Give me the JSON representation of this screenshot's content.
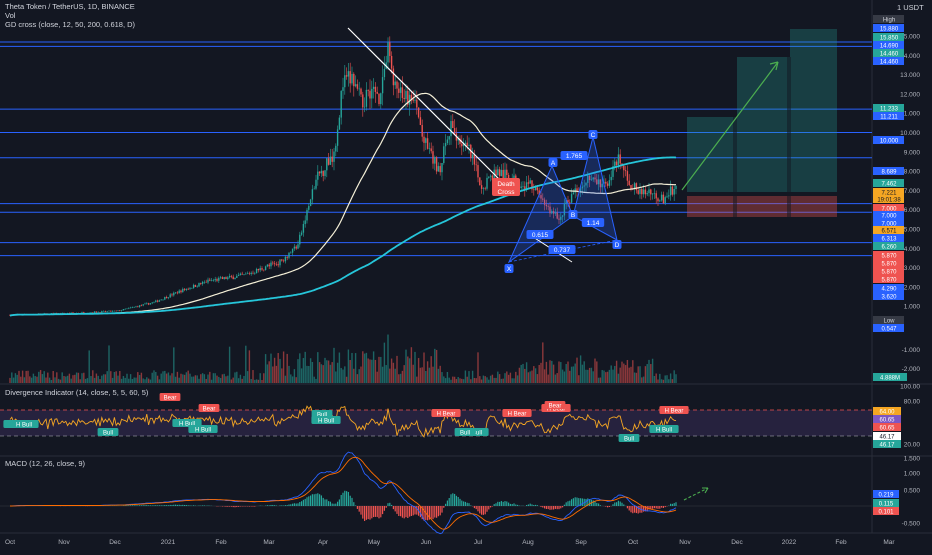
{
  "header": {
    "symbol": "Theta Token / TetherUS, 1D, BINANCE",
    "vol_label": "Vol",
    "indicator": "GD cross (close, 12, 50, 200, 0.618, D)",
    "currency": "1 USDT"
  },
  "colors": {
    "background": "#131722",
    "up": "#26a69a",
    "down": "#ef5350",
    "ma_fast": "#ffffff",
    "ma_slow": "#26c6da",
    "hline": "#2962ff",
    "trend": "#ffffff",
    "projection": "#4caf50",
    "divergence_line": "#f5a623",
    "macd": "#2962ff",
    "signal": "#ff6d00"
  },
  "price_axis": {
    "ticks": [
      "15.000",
      "14.000",
      "13.000",
      "12.000",
      "11.000",
      "10.000",
      "9.000",
      "8.000",
      "7.000",
      "6.000",
      "5.000",
      "4.000",
      "3.000",
      "2.000",
      "1.000"
    ],
    "tags": [
      {
        "text": "High",
        "color": "#363a45",
        "text_color": "#d1d4dc"
      },
      {
        "text": "15.880",
        "color": "#2962ff",
        "text_color": "#ffffff"
      },
      {
        "text": "15.850",
        "color": "#26a69a",
        "text_color": "#ffffff"
      },
      {
        "text": "14.690",
        "color": "#2962ff",
        "text_color": "#ffffff"
      },
      {
        "text": "14.460",
        "color": "#26a69a",
        "text_color": "#ffffff"
      },
      {
        "text": "14.460",
        "color": "#2962ff",
        "text_color": "#ffffff"
      },
      {
        "text": "11.233",
        "color": "#26a69a",
        "text_color": "#ffffff"
      },
      {
        "text": "11.211",
        "color": "#2962ff",
        "text_color": "#ffffff"
      },
      {
        "text": "10.000",
        "color": "#2962ff",
        "text_color": "#ffffff"
      },
      {
        "text": "8.689",
        "color": "#2962ff",
        "text_color": "#ffffff"
      },
      {
        "text": "7.462",
        "color": "#26a69a",
        "text_color": "#ffffff"
      },
      {
        "text": "7.221",
        "color": "#f5a623",
        "text_color": "#131722"
      },
      {
        "text": "19:01:38",
        "color": "#f5a623",
        "text_color": "#131722"
      },
      {
        "text": "7.000",
        "color": "#ef5350",
        "text_color": "#ffffff"
      },
      {
        "text": "7.000",
        "color": "#2962ff",
        "text_color": "#ffffff"
      },
      {
        "text": "7.000",
        "color": "#2962ff",
        "text_color": "#ffffff"
      },
      {
        "text": "6.571",
        "color": "#f5a623",
        "text_color": "#131722"
      },
      {
        "text": "6.313",
        "color": "#2962ff",
        "text_color": "#ffffff"
      },
      {
        "text": "6.260",
        "color": "#26a69a",
        "text_color": "#ffffff"
      },
      {
        "text": "5.870",
        "color": "#ef5350",
        "text_color": "#ffffff"
      },
      {
        "text": "5.870",
        "color": "#ef5350",
        "text_color": "#ffffff"
      },
      {
        "text": "5.870",
        "color": "#ef5350",
        "text_color": "#ffffff"
      },
      {
        "text": "5.870",
        "color": "#ef5350",
        "text_color": "#ffffff"
      },
      {
        "text": "4.290",
        "color": "#2962ff",
        "text_color": "#ffffff"
      },
      {
        "text": "3.620",
        "color": "#2962ff",
        "text_color": "#ffffff"
      },
      {
        "text": "Low",
        "color": "#363a45",
        "text_color": "#d1d4dc"
      },
      {
        "text": "0.547",
        "color": "#2962ff",
        "text_color": "#ffffff"
      }
    ]
  },
  "vol_axis": {
    "ticks": [
      "-1.000",
      "-2.000"
    ],
    "tag": "4.888M"
  },
  "divergence": {
    "title": "Divergence Indicator (14, close, 5, 5, 60, 5)",
    "ticks": [
      "100.00",
      "80.00",
      "20.00"
    ],
    "tags": [
      "64.00",
      "60.65",
      "60.65",
      "46.17",
      "46.17"
    ],
    "labels": [
      "Bear",
      "Bear",
      "H Bull",
      "Bull",
      "H Bull",
      "H Bull",
      "Bull",
      "H Bull",
      "H Bull",
      "H Bear",
      "H Bear",
      "H Bear",
      "Bear",
      "Bull",
      "H Bull",
      "H Bear",
      "Bull",
      "H Bull"
    ]
  },
  "macd": {
    "title": "MACD (12, 26, close, 9)",
    "ticks": [
      "1.500",
      "1.000",
      "0.500",
      "-0.500"
    ],
    "tags": [
      "0.219",
      "0.115",
      "0.101"
    ]
  },
  "pattern_labels": [
    "X",
    "A",
    "1.765",
    "B",
    "0.615",
    "C",
    "1.14",
    "0.737",
    "D"
  ],
  "death_cross_label": "Death\nCross",
  "time_axis": [
    "Oct",
    "Nov",
    "Dec",
    "2021",
    "Feb",
    "Mar",
    "Apr",
    "May",
    "Jun",
    "Jul",
    "Aug",
    "Sep",
    "Oct",
    "Nov",
    "Dec",
    "2022",
    "Feb",
    "Mar"
  ],
  "chart_data": {
    "type": "candlestick",
    "title": "Theta Token / TetherUS, 1D, BINANCE",
    "ylabel": "USDT",
    "x": [
      "2020-10",
      "2020-11",
      "2020-12",
      "2021-01",
      "2021-02",
      "2021-03",
      "2021-04",
      "2021-05",
      "2021-06",
      "2021-07",
      "2021-08",
      "2021-09",
      "2021-10"
    ],
    "approx_close": [
      0.6,
      0.7,
      0.8,
      1.9,
      2.8,
      4.5,
      12.0,
      9.0,
      6.5,
      6.0,
      7.3,
      6.8,
      7.2
    ],
    "ma_200": [
      0.6,
      0.6,
      0.7,
      0.9,
      1.2,
      1.7,
      2.8,
      4.1,
      5.1,
      5.7,
      6.5,
      7.3,
      7.4
    ],
    "horizontal_levels": [
      14.69,
      14.46,
      11.211,
      10.0,
      8.689,
      6.313,
      5.87,
      4.29,
      3.62
    ],
    "ylim": [
      0,
      16
    ]
  }
}
